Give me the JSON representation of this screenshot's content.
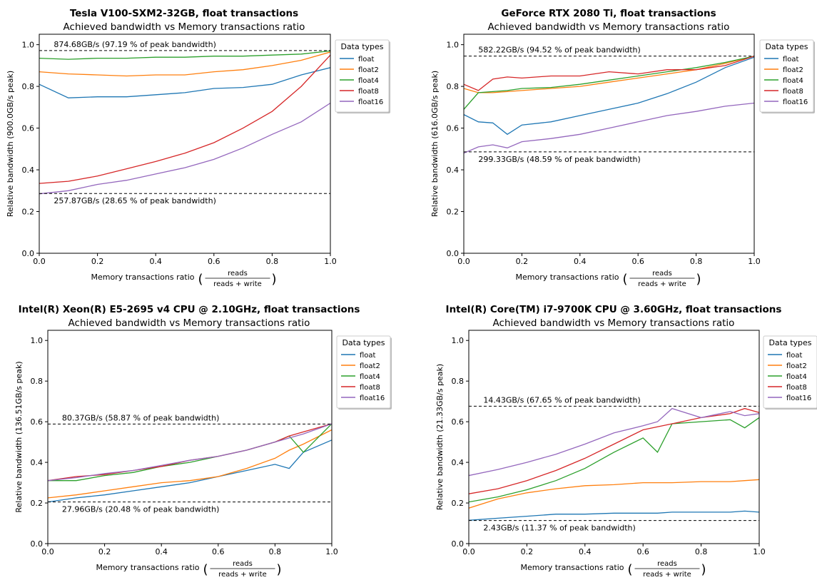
{
  "chart_data": [
    {
      "type": "line",
      "title": "Tesla V100-SXM2-32GB, float transactions",
      "subtitle": "Achieved bandwidth vs Memory transactions ratio",
      "xlabel": "Memory transactions ratio",
      "xlabel_frac_num": "reads",
      "xlabel_frac_den": "reads + write",
      "ylabel": "Relative bandwidth (900.0GB/s peak)",
      "xlim": [
        0,
        1
      ],
      "ylim": [
        0,
        1.05
      ],
      "xticks": [
        "0.0",
        "0.2",
        "0.4",
        "0.6",
        "0.8",
        "1.0"
      ],
      "yticks": [
        "0.0",
        "0.2",
        "0.4",
        "0.6",
        "0.8",
        "1.0"
      ],
      "grid": false,
      "legend_title": "Data types",
      "legend_placement": "outside-right",
      "x": [
        0.0,
        0.1,
        0.2,
        0.3,
        0.4,
        0.5,
        0.6,
        0.7,
        0.8,
        0.9,
        1.0
      ],
      "series": [
        {
          "name": "float",
          "color": "#1f77b4",
          "values": [
            0.81,
            0.745,
            0.75,
            0.75,
            0.76,
            0.77,
            0.79,
            0.795,
            0.81,
            0.855,
            0.89
          ]
        },
        {
          "name": "float2",
          "color": "#ff7f0e",
          "values": [
            0.87,
            0.86,
            0.855,
            0.85,
            0.855,
            0.855,
            0.87,
            0.88,
            0.9,
            0.925,
            0.965
          ]
        },
        {
          "name": "float4",
          "color": "#2ca02c",
          "values": [
            0.935,
            0.93,
            0.935,
            0.935,
            0.94,
            0.94,
            0.945,
            0.945,
            0.95,
            0.955,
            0.97
          ]
        },
        {
          "name": "float8",
          "color": "#d62728",
          "values": [
            0.335,
            0.345,
            0.37,
            0.405,
            0.44,
            0.48,
            0.53,
            0.6,
            0.68,
            0.8,
            0.95
          ]
        },
        {
          "name": "float16",
          "color": "#9467bd",
          "values": [
            0.285,
            0.3,
            0.33,
            0.35,
            0.38,
            0.41,
            0.45,
            0.505,
            0.57,
            0.63,
            0.72
          ]
        }
      ],
      "annotations": [
        {
          "value": 0.9719,
          "label": "874.68GB/s (97.19 % of peak bandwidth)"
        },
        {
          "value": 0.2865,
          "label": "257.87GB/s (28.65 % of peak bandwidth)"
        }
      ]
    },
    {
      "type": "line",
      "title": "GeForce RTX 2080 Ti, float transactions",
      "subtitle": "Achieved bandwidth vs Memory transactions ratio",
      "xlabel": "Memory transactions ratio",
      "xlabel_frac_num": "reads",
      "xlabel_frac_den": "reads + write",
      "ylabel": "Relative bandwidth (616.0GB/s peak)",
      "xlim": [
        0,
        1
      ],
      "ylim": [
        0,
        1.05
      ],
      "xticks": [
        "0.0",
        "0.2",
        "0.4",
        "0.6",
        "0.8",
        "1.0"
      ],
      "yticks": [
        "0.0",
        "0.2",
        "0.4",
        "0.6",
        "0.8",
        "1.0"
      ],
      "grid": false,
      "legend_title": "Data types",
      "legend_placement": "outside-right",
      "x": [
        0.0,
        0.05,
        0.1,
        0.15,
        0.2,
        0.3,
        0.4,
        0.5,
        0.6,
        0.7,
        0.8,
        0.9,
        1.0
      ],
      "series": [
        {
          "name": "float",
          "color": "#1f77b4",
          "values": [
            0.665,
            0.63,
            0.625,
            0.57,
            0.615,
            0.63,
            0.66,
            0.69,
            0.72,
            0.765,
            0.82,
            0.89,
            0.94
          ]
        },
        {
          "name": "float2",
          "color": "#ff7f0e",
          "values": [
            0.79,
            0.77,
            0.77,
            0.775,
            0.78,
            0.79,
            0.8,
            0.82,
            0.84,
            0.86,
            0.88,
            0.91,
            0.945
          ]
        },
        {
          "name": "float4",
          "color": "#2ca02c",
          "values": [
            0.69,
            0.77,
            0.775,
            0.78,
            0.79,
            0.795,
            0.81,
            0.83,
            0.85,
            0.87,
            0.89,
            0.915,
            0.945
          ]
        },
        {
          "name": "float8",
          "color": "#d62728",
          "values": [
            0.81,
            0.78,
            0.835,
            0.845,
            0.84,
            0.85,
            0.85,
            0.87,
            0.86,
            0.88,
            0.88,
            0.9,
            0.945
          ]
        },
        {
          "name": "float16",
          "color": "#9467bd",
          "values": [
            0.48,
            0.51,
            0.52,
            0.505,
            0.535,
            0.55,
            0.57,
            0.6,
            0.63,
            0.66,
            0.68,
            0.705,
            0.72
          ]
        }
      ],
      "annotations": [
        {
          "value": 0.9452,
          "label": "582.22GB/s (94.52 % of peak bandwidth)"
        },
        {
          "value": 0.4859,
          "label": "299.33GB/s (48.59 % of peak bandwidth)"
        }
      ]
    },
    {
      "type": "line",
      "title": "Intel(R) Xeon(R) E5-2695 v4 CPU @ 2.10GHz, float transactions",
      "subtitle": "Achieved bandwidth vs Memory transactions ratio",
      "xlabel": "Memory transactions ratio",
      "xlabel_frac_num": "reads",
      "xlabel_frac_den": "reads + write",
      "ylabel": "Relative bandwidth (136.51GB/s peak)",
      "xlim": [
        0,
        1
      ],
      "ylim": [
        0,
        1.05
      ],
      "xticks": [
        "0.0",
        "0.2",
        "0.4",
        "0.6",
        "0.8",
        "1.0"
      ],
      "yticks": [
        "0.0",
        "0.2",
        "0.4",
        "0.6",
        "0.8",
        "1.0"
      ],
      "grid": false,
      "legend_title": "Data types",
      "legend_placement": "outside-right",
      "x": [
        0.0,
        0.1,
        0.2,
        0.3,
        0.4,
        0.5,
        0.6,
        0.7,
        0.8,
        0.85,
        0.9,
        1.0
      ],
      "series": [
        {
          "name": "float",
          "color": "#1f77b4",
          "values": [
            0.205,
            0.225,
            0.24,
            0.26,
            0.28,
            0.3,
            0.33,
            0.36,
            0.39,
            0.37,
            0.45,
            0.51
          ]
        },
        {
          "name": "float2",
          "color": "#ff7f0e",
          "values": [
            0.225,
            0.24,
            0.26,
            0.28,
            0.3,
            0.31,
            0.33,
            0.37,
            0.42,
            0.46,
            0.49,
            0.56
          ]
        },
        {
          "name": "float4",
          "color": "#2ca02c",
          "values": [
            0.31,
            0.31,
            0.335,
            0.35,
            0.38,
            0.4,
            0.43,
            0.46,
            0.5,
            0.53,
            0.45,
            0.59
          ]
        },
        {
          "name": "float8",
          "color": "#d62728",
          "values": [
            0.31,
            0.33,
            0.34,
            0.36,
            0.38,
            0.41,
            0.43,
            0.46,
            0.5,
            0.53,
            0.55,
            0.59
          ]
        },
        {
          "name": "float16",
          "color": "#9467bd",
          "values": [
            0.31,
            0.325,
            0.345,
            0.36,
            0.385,
            0.41,
            0.43,
            0.46,
            0.5,
            0.52,
            0.54,
            0.59
          ]
        }
      ],
      "annotations": [
        {
          "value": 0.5887,
          "label": "80.37GB/s (58.87 % of peak bandwidth)"
        },
        {
          "value": 0.2048,
          "label": "27.96GB/s (20.48 % of peak bandwidth)"
        }
      ]
    },
    {
      "type": "line",
      "title": "Intel(R) Core(TM) i7-9700K CPU @ 3.60GHz, float transactions",
      "subtitle": "Achieved bandwidth vs Memory transactions ratio",
      "xlabel": "Memory transactions ratio",
      "xlabel_frac_num": "reads",
      "xlabel_frac_den": "reads + write",
      "ylabel": "Relative bandwidth (21.33GB/s peak)",
      "xlim": [
        0,
        1
      ],
      "ylim": [
        0,
        1.05
      ],
      "xticks": [
        "0.0",
        "0.2",
        "0.4",
        "0.6",
        "0.8",
        "1.0"
      ],
      "yticks": [
        "0.0",
        "0.2",
        "0.4",
        "0.6",
        "0.8",
        "1.0"
      ],
      "grid": false,
      "legend_title": "Data types",
      "legend_placement": "outside-right",
      "x": [
        0.0,
        0.1,
        0.2,
        0.3,
        0.4,
        0.5,
        0.6,
        0.65,
        0.7,
        0.8,
        0.9,
        0.95,
        1.0
      ],
      "series": [
        {
          "name": "float",
          "color": "#1f77b4",
          "values": [
            0.115,
            0.125,
            0.135,
            0.145,
            0.145,
            0.15,
            0.15,
            0.15,
            0.155,
            0.155,
            0.155,
            0.16,
            0.155
          ]
        },
        {
          "name": "float2",
          "color": "#ff7f0e",
          "values": [
            0.175,
            0.22,
            0.25,
            0.27,
            0.285,
            0.29,
            0.3,
            0.3,
            0.3,
            0.305,
            0.305,
            0.31,
            0.315
          ]
        },
        {
          "name": "float4",
          "color": "#2ca02c",
          "values": [
            0.205,
            0.23,
            0.265,
            0.31,
            0.37,
            0.45,
            0.52,
            0.45,
            0.59,
            0.6,
            0.61,
            0.57,
            0.62
          ]
        },
        {
          "name": "float8",
          "color": "#d62728",
          "values": [
            0.245,
            0.27,
            0.31,
            0.36,
            0.42,
            0.49,
            0.56,
            0.575,
            0.59,
            0.62,
            0.64,
            0.665,
            0.645
          ]
        },
        {
          "name": "float16",
          "color": "#9467bd",
          "values": [
            0.335,
            0.365,
            0.4,
            0.44,
            0.49,
            0.545,
            0.58,
            0.6,
            0.665,
            0.62,
            0.65,
            0.63,
            0.64
          ]
        }
      ],
      "annotations": [
        {
          "value": 0.6765,
          "label": "14.43GB/s (67.65 % of peak bandwidth)"
        },
        {
          "value": 0.1137,
          "label": "2.43GB/s (11.37 % of peak bandwidth)"
        }
      ]
    }
  ]
}
